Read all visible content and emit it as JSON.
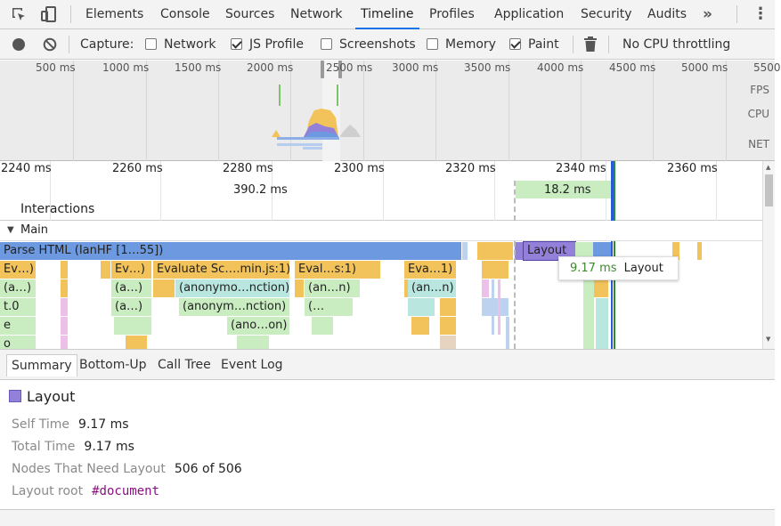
{
  "tabs": {
    "items": [
      "Elements",
      "Console",
      "Sources",
      "Network",
      "Timeline",
      "Profiles",
      "Application",
      "Security",
      "Audits"
    ],
    "active": "Timeline",
    "more_glyph": "»",
    "menu_glyph": "⋮"
  },
  "toolbar": {
    "capture_label": "Capture:",
    "options": [
      {
        "label": "Network",
        "checked": false
      },
      {
        "label": "JS Profile",
        "checked": true
      },
      {
        "label": "Screenshots",
        "checked": false
      },
      {
        "label": "Memory",
        "checked": false
      },
      {
        "label": "Paint",
        "checked": true
      }
    ],
    "cpu_throttling": "No CPU throttling"
  },
  "overview": {
    "ticks": [
      "500 ms",
      "1000 ms",
      "1500 ms",
      "2000 ms",
      "2500 ms",
      "3000 ms",
      "3500 ms",
      "4000 ms",
      "4500 ms",
      "5000 ms",
      "5500"
    ],
    "lanes": [
      "FPS",
      "CPU",
      "NET"
    ]
  },
  "ruler": {
    "ticks": [
      "2240 ms",
      "2260 ms",
      "2280 ms",
      "2300 ms",
      "2320 ms",
      "2340 ms",
      "2360 ms"
    ],
    "frame_durations": [
      "390.2 ms",
      "18.2 ms"
    ],
    "interactions_label": "Interactions"
  },
  "flame": {
    "main_label": "Main",
    "parse_html": "Parse HTML (IanHF [1…55])",
    "layout_block": "Layout",
    "row1": [
      "Ev…)",
      "Ev…)",
      "Evaluate Sc….min.js:1)",
      "Eval…s:1)",
      "Eva…1)"
    ],
    "row2": [
      "(a…)",
      "(a…)",
      "(anonymo…nction)",
      "(an…n)",
      "(an…n)"
    ],
    "row3": [
      "t.0",
      "(a…)",
      "(anonym…nction)",
      "(…"
    ],
    "row4": [
      "e",
      "(ano…on)"
    ],
    "row5": [
      "o"
    ]
  },
  "tooltip": {
    "duration": "9.17 ms",
    "name": "Layout"
  },
  "bottom_tabs": [
    "Summary",
    "Bottom-Up",
    "Call Tree",
    "Event Log"
  ],
  "summary": {
    "title": "Layout",
    "color": "#9381d9",
    "rows": [
      {
        "key": "Self Time",
        "value": "9.17 ms"
      },
      {
        "key": "Total Time",
        "value": "9.17 ms"
      },
      {
        "key": "Nodes That Need Layout",
        "value": "506 of 506"
      },
      {
        "key": "Layout root",
        "value": "#document"
      }
    ]
  },
  "colors": {
    "accent": "#1a73e8",
    "scripting": "#f2c35b",
    "loading": "#6c99e0",
    "rendering": "#9381d9",
    "frame_green": "#c9ecc0",
    "duration_green": "#3c8a2e"
  }
}
